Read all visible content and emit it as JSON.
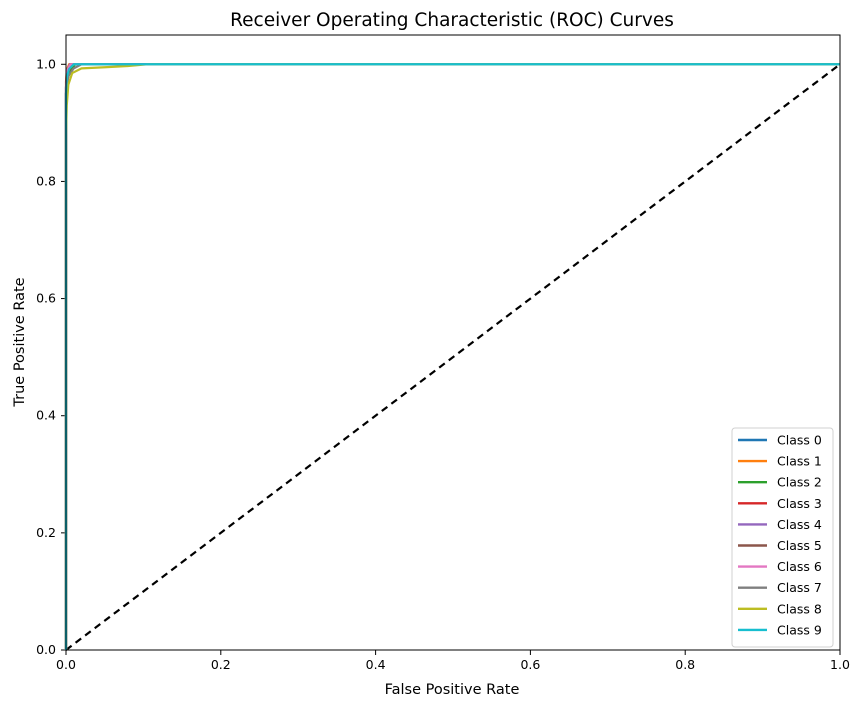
{
  "chart_data": {
    "type": "line",
    "title": "Receiver Operating Characteristic (ROC) Curves",
    "xlabel": "False Positive Rate",
    "ylabel": "True Positive Rate",
    "xlim": [
      0.0,
      1.0
    ],
    "ylim": [
      0.0,
      1.05
    ],
    "xticks": [
      "0.0",
      "0.2",
      "0.4",
      "0.6",
      "0.8",
      "1.0"
    ],
    "yticks": [
      "0.0",
      "0.2",
      "0.4",
      "0.6",
      "0.8",
      "1.0"
    ],
    "grid": false,
    "legend_position": "lower-right",
    "reference_line": {
      "x": [
        0.0,
        1.0
      ],
      "y": [
        0.0,
        1.0
      ],
      "style": "dashed",
      "color": "#000000"
    },
    "series": [
      {
        "name": "Class 0",
        "color": "#1f77b4",
        "x": [
          0.0,
          0.0,
          0.001,
          0.003,
          0.005,
          1.0
        ],
        "y": [
          0.0,
          0.96,
          0.985,
          0.995,
          1.0,
          1.0
        ]
      },
      {
        "name": "Class 1",
        "color": "#ff7f0e",
        "x": [
          0.0,
          0.0,
          0.001,
          0.004,
          1.0
        ],
        "y": [
          0.0,
          0.97,
          0.99,
          1.0,
          1.0
        ]
      },
      {
        "name": "Class 2",
        "color": "#2ca02c",
        "x": [
          0.0,
          0.0,
          0.002,
          0.006,
          0.012,
          1.0
        ],
        "y": [
          0.0,
          0.94,
          0.975,
          0.99,
          1.0,
          1.0
        ]
      },
      {
        "name": "Class 3",
        "color": "#d62728",
        "x": [
          0.0,
          0.0,
          0.002,
          0.008,
          1.0
        ],
        "y": [
          0.0,
          0.95,
          0.985,
          1.0,
          1.0
        ]
      },
      {
        "name": "Class 4",
        "color": "#9467bd",
        "x": [
          0.0,
          0.0,
          0.001,
          0.005,
          1.0
        ],
        "y": [
          0.0,
          0.96,
          0.988,
          1.0,
          1.0
        ]
      },
      {
        "name": "Class 5",
        "color": "#8c564b",
        "x": [
          0.0,
          0.0,
          0.002,
          0.006,
          1.0
        ],
        "y": [
          0.0,
          0.95,
          0.985,
          1.0,
          1.0
        ]
      },
      {
        "name": "Class 6",
        "color": "#e377c2",
        "x": [
          0.0,
          0.0,
          0.002,
          0.006,
          1.0
        ],
        "y": [
          0.0,
          0.96,
          0.99,
          1.0,
          1.0
        ]
      },
      {
        "name": "Class 7",
        "color": "#7f7f7f",
        "x": [
          0.0,
          0.0,
          0.003,
          0.01,
          0.02,
          1.0
        ],
        "y": [
          0.0,
          0.95,
          0.98,
          0.993,
          1.0,
          1.0
        ]
      },
      {
        "name": "Class 8",
        "color": "#bcbd22",
        "x": [
          0.0,
          0.0,
          0.001,
          0.003,
          0.008,
          0.02,
          0.05,
          0.08,
          0.105,
          1.0
        ],
        "y": [
          0.0,
          0.88,
          0.93,
          0.965,
          0.985,
          0.993,
          0.995,
          0.997,
          1.0,
          1.0
        ]
      },
      {
        "name": "Class 9",
        "color": "#17becf",
        "x": [
          0.0,
          0.0,
          0.001,
          0.004,
          0.01,
          1.0
        ],
        "y": [
          0.0,
          0.95,
          0.978,
          0.992,
          1.0,
          1.0
        ]
      }
    ]
  }
}
